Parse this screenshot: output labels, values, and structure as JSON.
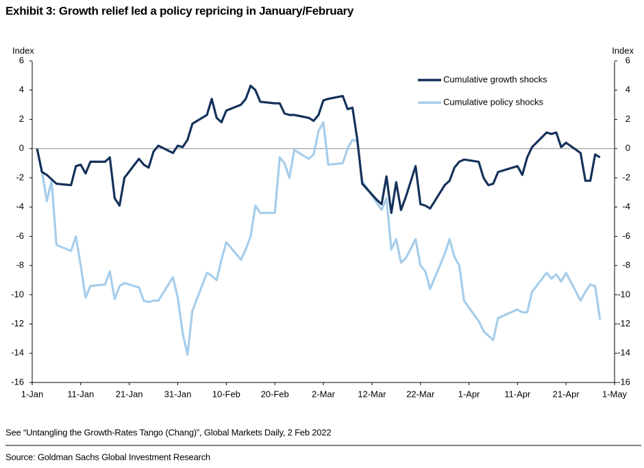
{
  "title": "Exhibit 3:  Growth relief led a policy repricing in January/February",
  "note": "See “Untangling the Growth-Rates Tango (Chang)”, Global Markets Daily, 2 Feb 2022",
  "source": "Source: Goldman Sachs Global Investment Research",
  "chart_data": {
    "type": "line",
    "y_label": "Index",
    "y2_label": "Index",
    "x": [
      "2-Jan",
      "3-Jan",
      "4-Jan",
      "5-Jan",
      "6-Jan",
      "9-Jan",
      "10-Jan",
      "11-Jan",
      "12-Jan",
      "13-Jan",
      "16-Jan",
      "17-Jan",
      "18-Jan",
      "19-Jan",
      "20-Jan",
      "23-Jan",
      "24-Jan",
      "25-Jan",
      "26-Jan",
      "27-Jan",
      "30-Jan",
      "31-Jan",
      "1-Feb",
      "2-Feb",
      "3-Feb",
      "6-Feb",
      "7-Feb",
      "8-Feb",
      "9-Feb",
      "10-Feb",
      "13-Feb",
      "14-Feb",
      "15-Feb",
      "16-Feb",
      "17-Feb",
      "20-Feb",
      "21-Feb",
      "22-Feb",
      "23-Feb",
      "24-Feb",
      "27-Feb",
      "28-Feb",
      "1-Mar",
      "2-Mar",
      "3-Mar",
      "6-Mar",
      "7-Mar",
      "8-Mar",
      "9-Mar",
      "10-Mar",
      "13-Mar",
      "14-Mar",
      "15-Mar",
      "16-Mar",
      "17-Mar",
      "18-Mar",
      "19-Mar",
      "21-Mar",
      "22-Mar",
      "23-Mar",
      "24-Mar",
      "27-Mar",
      "28-Mar",
      "29-Mar",
      "30-Mar",
      "31-Mar",
      "3-Apr",
      "4-Apr",
      "5-Apr",
      "6-Apr",
      "7-Apr",
      "11-Apr",
      "12-Apr",
      "13-Apr",
      "14-Apr",
      "17-Apr",
      "18-Apr",
      "19-Apr",
      "20-Apr",
      "21-Apr",
      "24-Apr",
      "25-Apr",
      "26-Apr",
      "27-Apr",
      "28-Apr"
    ],
    "series": [
      {
        "name": "Cumulative growth shocks",
        "color": "#14315a",
        "values": [
          0,
          -1.6,
          -1.8,
          -2.1,
          -2.4,
          -2.5,
          -1.2,
          -1.1,
          -1.7,
          -0.9,
          -0.9,
          -0.6,
          -3.4,
          -3.9,
          -2.0,
          -0.7,
          -1.1,
          -1.3,
          -0.2,
          0.2,
          -0.3,
          0.2,
          0.1,
          0.6,
          1.7,
          2.3,
          3.4,
          2.1,
          1.8,
          2.6,
          3.0,
          3.4,
          4.3,
          4.0,
          3.2,
          3.1,
          3.1,
          2.4,
          2.3,
          2.3,
          2.1,
          1.9,
          2.3,
          3.3,
          3.4,
          3.6,
          2.7,
          2.8,
          0.6,
          -2.4,
          -3.5,
          -3.8,
          -1.9,
          -4.4,
          -2.3,
          -4.2,
          -3.3,
          -1.2,
          -3.8,
          -3.9,
          -4.1,
          -2.5,
          -2.2,
          -1.3,
          -0.9,
          -0.75,
          -0.9,
          -2.0,
          -2.5,
          -2.4,
          -1.6,
          -1.2,
          -1.8,
          -0.6,
          0.1,
          1.1,
          1.0,
          1.1,
          0.1,
          0.4,
          -0.3,
          -2.2,
          -2.2,
          -0.4,
          -0.6
        ]
      },
      {
        "name": "Cumulative policy shocks",
        "color": "#a6cdea",
        "values": [
          0,
          -1.5,
          -3.6,
          -2.2,
          -6.6,
          -7.0,
          -6.0,
          -8.0,
          -10.2,
          -9.4,
          -9.3,
          -8.4,
          -10.3,
          -9.4,
          -9.2,
          -9.5,
          -10.4,
          -10.5,
          -10.4,
          -10.4,
          -8.8,
          -10.2,
          -12.6,
          -14.1,
          -11.1,
          -8.5,
          -8.7,
          -9.0,
          -7.6,
          -6.4,
          -7.6,
          -6.9,
          -6.0,
          -3.9,
          -4.4,
          -4.4,
          -0.6,
          -1.0,
          -2.0,
          -0.1,
          -0.7,
          -0.4,
          1.2,
          1.8,
          -1.1,
          -1.0,
          0.0,
          0.6,
          0.5,
          -2.2,
          -3.7,
          -4.2,
          -3.4,
          -6.9,
          -6.2,
          -7.8,
          -7.5,
          -6.2,
          -8.0,
          -8.4,
          -9.6,
          -7.2,
          -6.2,
          -7.4,
          -8.0,
          -10.4,
          -11.8,
          -12.5,
          -12.8,
          -13.1,
          -11.6,
          -11.0,
          -11.2,
          -11.2,
          -9.8,
          -8.5,
          -8.9,
          -8.6,
          -9.1,
          -8.5,
          -10.4,
          -9.8,
          -9.3,
          -9.4,
          -11.7
        ]
      }
    ],
    "xlim": [
      "1-Jan",
      "1-May"
    ],
    "xticks": [
      "1-Jan",
      "11-Jan",
      "21-Jan",
      "31-Jan",
      "10-Feb",
      "20-Feb",
      "2-Mar",
      "12-Mar",
      "22-Mar",
      "1-Apr",
      "11-Apr",
      "21-Apr",
      "1-May"
    ],
    "ylim": [
      -16,
      6
    ],
    "yticks": [
      -16,
      -14,
      -12,
      -10,
      -8,
      -6,
      -4,
      -2,
      0,
      2,
      4,
      6
    ],
    "y2lim": [
      -16,
      6
    ],
    "y2ticks": [
      -16,
      -14,
      -12,
      -10,
      -8,
      -6,
      -4,
      -2,
      0,
      2,
      4,
      6
    ],
    "grid": false,
    "legend": "upper right"
  }
}
